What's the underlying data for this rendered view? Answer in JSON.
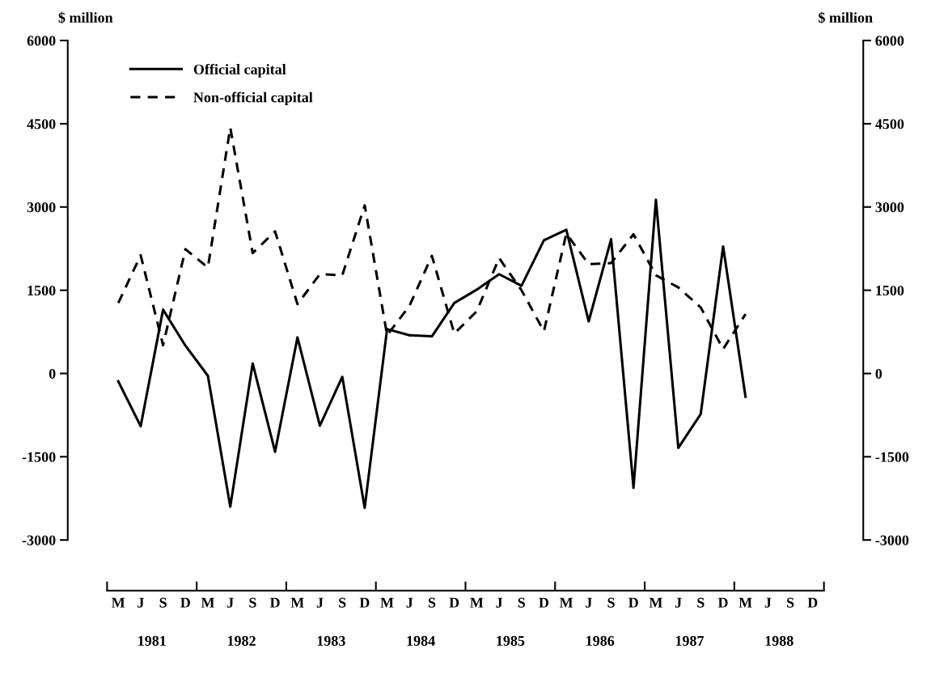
{
  "chart_data": {
    "type": "line",
    "categories": [
      "M",
      "J",
      "S",
      "D",
      "M",
      "J",
      "S",
      "D",
      "M",
      "J",
      "S",
      "D",
      "M",
      "J",
      "S",
      "D",
      "M",
      "J",
      "S",
      "D",
      "M",
      "J",
      "S",
      "D",
      "M",
      "J",
      "S",
      "D",
      "M",
      "J",
      "S",
      "D"
    ],
    "series": [
      {
        "name": "Official capital",
        "color": "#000000",
        "line_style": "solid",
        "values": [
          -140,
          -950,
          1150,
          500,
          -40,
          -2400,
          180,
          -1410,
          650,
          -940,
          -60,
          -2420,
          800,
          690,
          670,
          1270,
          1510,
          1790,
          1580,
          2400,
          2590,
          940,
          2420,
          -2060,
          3130,
          -1340,
          -730,
          2290,
          -420,
          null,
          null,
          null
        ]
      },
      {
        "name": "Non-official capital",
        "color": "#000000",
        "line_style": "dashed",
        "values": [
          1270,
          2130,
          510,
          2240,
          1910,
          4430,
          2170,
          2560,
          1250,
          1790,
          1770,
          3030,
          690,
          1220,
          2120,
          720,
          1120,
          2080,
          1500,
          760,
          2520,
          1970,
          1990,
          2510,
          1770,
          1550,
          1190,
          440,
          1070,
          null,
          null,
          null
        ]
      }
    ],
    "ylabel": "$ million",
    "y2label": "$ million",
    "ylim": [
      -3000,
      6000
    ],
    "yticks": [
      -3000,
      -1500,
      0,
      1500,
      3000,
      4500,
      6000
    ],
    "y2lim": [
      -3000,
      6000
    ],
    "y2ticks": [
      -3000,
      -1500,
      0,
      1500,
      3000,
      4500,
      6000
    ],
    "annotations": [
      "1981",
      "1982",
      "1983",
      "1984",
      "1985",
      "1986",
      "1987",
      "1988"
    ],
    "legend": "top left",
    "grid": false,
    "marker": "none"
  }
}
